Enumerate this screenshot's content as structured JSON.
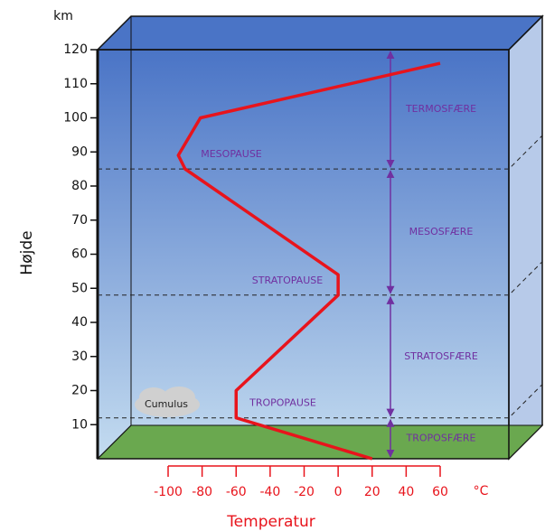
{
  "chart_data": {
    "type": "line",
    "y_label": "Højde",
    "y_unit": "km",
    "x_label": "Temperatur",
    "x_unit": "°C",
    "x": [
      20,
      -60,
      -60,
      0,
      0,
      -90,
      -94,
      -81,
      60
    ],
    "values": [
      0,
      12,
      20,
      48,
      54,
      85,
      89,
      100,
      116
    ],
    "color": "#e8141c",
    "xlim": [
      -100,
      60
    ],
    "ylim": [
      0,
      120
    ],
    "xticks": [
      -100,
      -80,
      -60,
      -40,
      -20,
      0,
      20,
      40,
      60
    ],
    "yticks": [
      10,
      20,
      30,
      40,
      50,
      60,
      70,
      80,
      90,
      100,
      110,
      120
    ],
    "pauses": [
      {
        "label": "TROPOPAUSE",
        "value": 12
      },
      {
        "label": "STRATOPAUSE",
        "value": 48
      },
      {
        "label": "MESOPAUSE",
        "value": 85
      }
    ],
    "layers": [
      "TROPOSFÆRE",
      "STRATOSFÆRE",
      "MESOSFÆRE",
      "TERMOSFÆRE"
    ],
    "cloud_label": "Cumulus"
  }
}
